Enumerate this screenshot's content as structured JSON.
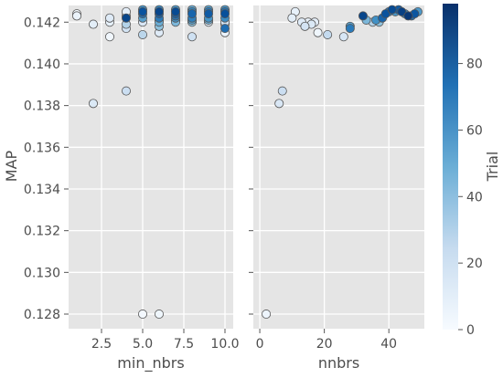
{
  "chart_data": {
    "type": "scatter",
    "ylabel": "MAP",
    "ylim": [
      0.1273,
      0.1428
    ],
    "yticks": [
      0.128,
      0.13,
      0.132,
      0.134,
      0.136,
      0.138,
      0.14,
      0.142
    ],
    "ytick_labels": [
      "0.128",
      "0.130",
      "0.132",
      "0.134",
      "0.136",
      "0.138",
      "0.140",
      "0.142"
    ],
    "grid": true,
    "background": "#e5e5e5",
    "colormap": "Blues",
    "point_edge_color": "#555555",
    "panels": [
      {
        "xlabel": "min_nbrs",
        "xlim": [
          0.5,
          10.5
        ],
        "xticks": [
          2.5,
          5.0,
          7.5,
          10.0
        ],
        "xtick_labels": [
          "2.5",
          "5.0",
          "7.5",
          "10.0"
        ],
        "points": [
          {
            "x": 1,
            "y": 0.1424,
            "trial": 2
          },
          {
            "x": 1,
            "y": 0.1423,
            "trial": 6
          },
          {
            "x": 2,
            "y": 0.1381,
            "trial": 14
          },
          {
            "x": 2,
            "y": 0.1419,
            "trial": 10
          },
          {
            "x": 3,
            "y": 0.1413,
            "trial": 3
          },
          {
            "x": 3,
            "y": 0.142,
            "trial": 8
          },
          {
            "x": 3,
            "y": 0.1422,
            "trial": 12
          },
          {
            "x": 4,
            "y": 0.1387,
            "trial": 22
          },
          {
            "x": 4,
            "y": 0.1417,
            "trial": 18
          },
          {
            "x": 4,
            "y": 0.1419,
            "trial": 30
          },
          {
            "x": 4,
            "y": 0.1422,
            "trial": 90
          },
          {
            "x": 4,
            "y": 0.1423,
            "trial": 5
          },
          {
            "x": 4,
            "y": 0.1425,
            "trial": 9
          },
          {
            "x": 5,
            "y": 0.128,
            "trial": 2
          },
          {
            "x": 5,
            "y": 0.1414,
            "trial": 28
          },
          {
            "x": 5,
            "y": 0.142,
            "trial": 15
          },
          {
            "x": 5,
            "y": 0.1422,
            "trial": 55
          },
          {
            "x": 5,
            "y": 0.1424,
            "trial": 75
          },
          {
            "x": 5,
            "y": 0.1425,
            "trial": 85
          },
          {
            "x": 5,
            "y": 0.1426,
            "trial": 60
          },
          {
            "x": 6,
            "y": 0.128,
            "trial": 4
          },
          {
            "x": 6,
            "y": 0.1415,
            "trial": 12
          },
          {
            "x": 6,
            "y": 0.1418,
            "trial": 40
          },
          {
            "x": 6,
            "y": 0.142,
            "trial": 50
          },
          {
            "x": 6,
            "y": 0.1421,
            "trial": 35
          },
          {
            "x": 6,
            "y": 0.1422,
            "trial": 70
          },
          {
            "x": 6,
            "y": 0.1424,
            "trial": 80
          },
          {
            "x": 6,
            "y": 0.1425,
            "trial": 90
          },
          {
            "x": 6,
            "y": 0.1426,
            "trial": 65
          },
          {
            "x": 7,
            "y": 0.142,
            "trial": 45
          },
          {
            "x": 7,
            "y": 0.1421,
            "trial": 30
          },
          {
            "x": 7,
            "y": 0.1422,
            "trial": 62
          },
          {
            "x": 7,
            "y": 0.1423,
            "trial": 72
          },
          {
            "x": 7,
            "y": 0.1424,
            "trial": 80
          },
          {
            "x": 7,
            "y": 0.1425,
            "trial": 88
          },
          {
            "x": 7,
            "y": 0.1426,
            "trial": 58
          },
          {
            "x": 8,
            "y": 0.1413,
            "trial": 20
          },
          {
            "x": 8,
            "y": 0.142,
            "trial": 40
          },
          {
            "x": 8,
            "y": 0.1421,
            "trial": 55
          },
          {
            "x": 8,
            "y": 0.1422,
            "trial": 68
          },
          {
            "x": 8,
            "y": 0.1424,
            "trial": 78
          },
          {
            "x": 8,
            "y": 0.1425,
            "trial": 66
          },
          {
            "x": 8,
            "y": 0.1426,
            "trial": 50
          },
          {
            "x": 9,
            "y": 0.142,
            "trial": 12
          },
          {
            "x": 9,
            "y": 0.1421,
            "trial": 48
          },
          {
            "x": 9,
            "y": 0.1422,
            "trial": 60
          },
          {
            "x": 9,
            "y": 0.1424,
            "trial": 82
          },
          {
            "x": 9,
            "y": 0.1425,
            "trial": 70
          },
          {
            "x": 9,
            "y": 0.1426,
            "trial": 54
          },
          {
            "x": 10,
            "y": 0.1415,
            "trial": 6
          },
          {
            "x": 10,
            "y": 0.1417,
            "trial": 75
          },
          {
            "x": 10,
            "y": 0.1419,
            "trial": 10
          },
          {
            "x": 10,
            "y": 0.142,
            "trial": 18
          },
          {
            "x": 10,
            "y": 0.1422,
            "trial": 64
          },
          {
            "x": 10,
            "y": 0.1424,
            "trial": 86
          },
          {
            "x": 10,
            "y": 0.1425,
            "trial": 72
          },
          {
            "x": 10,
            "y": 0.1426,
            "trial": 58
          }
        ]
      },
      {
        "xlabel": "nnbrs",
        "xlim": [
          -2,
          51
        ],
        "xticks": [
          0,
          20,
          40
        ],
        "xtick_labels": [
          "0",
          "20",
          "40"
        ],
        "points": [
          {
            "x": 2,
            "y": 0.128,
            "trial": 5
          },
          {
            "x": 6,
            "y": 0.1381,
            "trial": 15
          },
          {
            "x": 7,
            "y": 0.1387,
            "trial": 22
          },
          {
            "x": 10,
            "y": 0.1422,
            "trial": 10
          },
          {
            "x": 11,
            "y": 0.1425,
            "trial": 8
          },
          {
            "x": 13,
            "y": 0.142,
            "trial": 12
          },
          {
            "x": 14,
            "y": 0.1418,
            "trial": 18
          },
          {
            "x": 15,
            "y": 0.142,
            "trial": 6
          },
          {
            "x": 16,
            "y": 0.1419,
            "trial": 14
          },
          {
            "x": 17,
            "y": 0.142,
            "trial": 9
          },
          {
            "x": 18,
            "y": 0.1415,
            "trial": 4
          },
          {
            "x": 21,
            "y": 0.1414,
            "trial": 25
          },
          {
            "x": 26,
            "y": 0.1413,
            "trial": 16
          },
          {
            "x": 28,
            "y": 0.1417,
            "trial": 70
          },
          {
            "x": 28,
            "y": 0.1418,
            "trial": 55
          },
          {
            "x": 32,
            "y": 0.1423,
            "trial": 90
          },
          {
            "x": 33,
            "y": 0.1421,
            "trial": 45
          },
          {
            "x": 35,
            "y": 0.142,
            "trial": 30
          },
          {
            "x": 36,
            "y": 0.1421,
            "trial": 62
          },
          {
            "x": 37,
            "y": 0.142,
            "trial": 40
          },
          {
            "x": 38,
            "y": 0.1422,
            "trial": 78
          },
          {
            "x": 39,
            "y": 0.1424,
            "trial": 85
          },
          {
            "x": 40,
            "y": 0.1425,
            "trial": 72
          },
          {
            "x": 41,
            "y": 0.1426,
            "trial": 88
          },
          {
            "x": 42,
            "y": 0.1425,
            "trial": 60
          },
          {
            "x": 43,
            "y": 0.1426,
            "trial": 82
          },
          {
            "x": 44,
            "y": 0.1425,
            "trial": 92
          },
          {
            "x": 45,
            "y": 0.1424,
            "trial": 66
          },
          {
            "x": 46,
            "y": 0.1423,
            "trial": 95
          },
          {
            "x": 47,
            "y": 0.1423,
            "trial": 75
          },
          {
            "x": 48,
            "y": 0.1424,
            "trial": 84
          },
          {
            "x": 49,
            "y": 0.1425,
            "trial": 58
          }
        ]
      }
    ],
    "colorbar": {
      "label": "Trial",
      "range": [
        0,
        98
      ],
      "ticks": [
        0,
        20,
        40,
        60,
        80
      ],
      "tick_labels": [
        "0",
        "20",
        "40",
        "60",
        "80"
      ],
      "color_min": "#f7fbff",
      "color_mid": "#6baed6",
      "color_max": "#08306b"
    }
  }
}
